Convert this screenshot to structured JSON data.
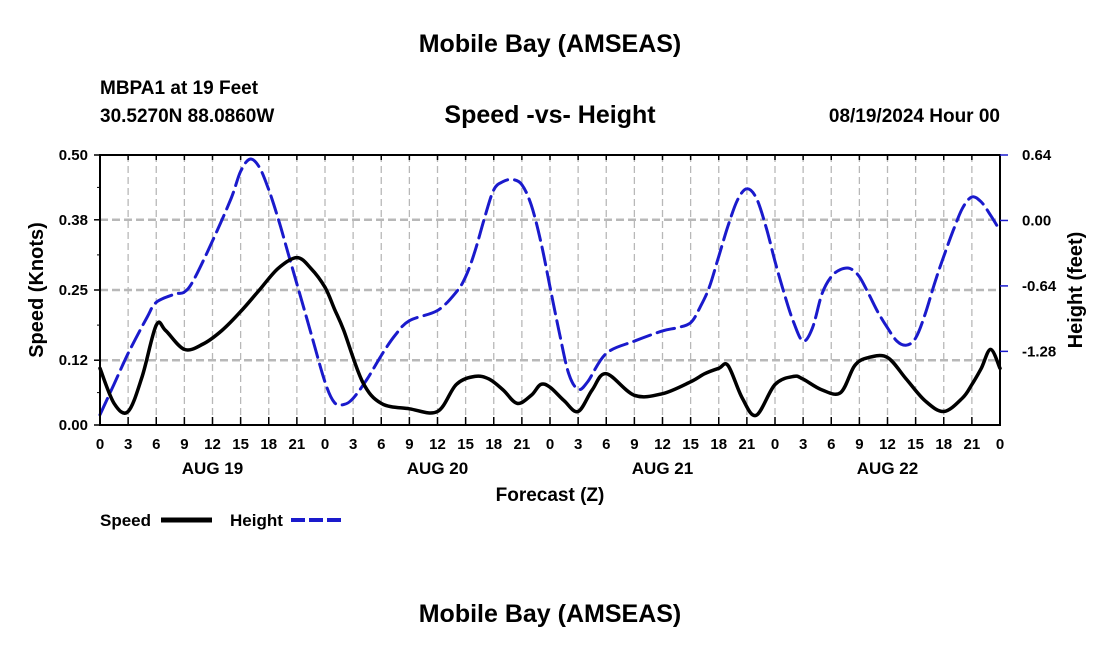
{
  "header": {
    "title": "Mobile Bay (AMSEAS)",
    "station": "MBPA1 at 19 Feet",
    "coordinates": "30.5270N  88.0860W",
    "subtitle": "Speed -vs- Height",
    "datetime": "08/19/2024 Hour 00"
  },
  "footer": {
    "title": "Mobile Bay (AMSEAS)"
  },
  "chart_data": {
    "type": "line",
    "title": "Speed -vs- Height",
    "xlabel": "Forecast (Z)",
    "ylabel": "Speed (Knots)",
    "y2label": "Height (feet)",
    "ylim": [
      0,
      0.5
    ],
    "y2lim": [
      -2.0,
      0.64
    ],
    "yticks": [
      0.0,
      0.12,
      0.25,
      0.38,
      0.5
    ],
    "yticklabels": [
      "0.00",
      "0.12",
      "0.25",
      "0.38",
      "0.50"
    ],
    "y2ticks": [
      -1.28,
      -0.64,
      0.0,
      0.64
    ],
    "y2ticklabels": [
      "-1.28",
      "-0.64",
      "0.00",
      "0.64"
    ],
    "xlim": [
      0,
      96
    ],
    "xticks": [
      0,
      3,
      6,
      9,
      12,
      15,
      18,
      21,
      24,
      27,
      30,
      33,
      36,
      39,
      42,
      45,
      48,
      51,
      54,
      57,
      60,
      63,
      66,
      69,
      72,
      75,
      78,
      81,
      84,
      87,
      90,
      93,
      96
    ],
    "xticklabels": [
      "0",
      "3",
      "6",
      "9",
      "12",
      "15",
      "18",
      "21",
      "0",
      "3",
      "6",
      "9",
      "12",
      "15",
      "18",
      "21",
      "0",
      "3",
      "6",
      "9",
      "12",
      "15",
      "18",
      "21",
      "0",
      "3",
      "6",
      "9",
      "12",
      "15",
      "18",
      "21",
      "0"
    ],
    "day_labels": [
      {
        "label": "AUG 19",
        "center": 12
      },
      {
        "label": "AUG 20",
        "center": 36
      },
      {
        "label": "AUG 21",
        "center": 60
      },
      {
        "label": "AUG 22",
        "center": 84
      }
    ],
    "grid": true,
    "legend": {
      "placement": "bottom-left",
      "entries": [
        {
          "name": "Speed",
          "color": "#000000",
          "style": "solid"
        },
        {
          "name": "Height",
          "color": "#1a1acc",
          "style": "dashed"
        }
      ]
    },
    "series": [
      {
        "name": "Speed",
        "axis": "left",
        "color": "#000000",
        "x": [
          0,
          1.5,
          3,
          4.5,
          6,
          7,
          9,
          11,
          13,
          15,
          17,
          19,
          21,
          22.5,
          24,
          25,
          26,
          28,
          30,
          33,
          36,
          38,
          40,
          41.5,
          43,
          44.5,
          46,
          47,
          48,
          49.5,
          51,
          52.5,
          54,
          57,
          60,
          63,
          64.5,
          66,
          67,
          68.5,
          70,
          72,
          74,
          75,
          77,
          79,
          80.5,
          82,
          84,
          86,
          88,
          90,
          92,
          93,
          94,
          95,
          96
        ],
        "values": [
          0.105,
          0.04,
          0.025,
          0.09,
          0.185,
          0.175,
          0.14,
          0.15,
          0.175,
          0.21,
          0.25,
          0.29,
          0.31,
          0.29,
          0.255,
          0.215,
          0.175,
          0.08,
          0.04,
          0.03,
          0.025,
          0.075,
          0.09,
          0.085,
          0.065,
          0.04,
          0.055,
          0.075,
          0.07,
          0.045,
          0.025,
          0.065,
          0.095,
          0.055,
          0.058,
          0.08,
          0.095,
          0.105,
          0.11,
          0.05,
          0.018,
          0.075,
          0.09,
          0.085,
          0.065,
          0.06,
          0.11,
          0.125,
          0.125,
          0.085,
          0.045,
          0.025,
          0.05,
          0.075,
          0.105,
          0.14,
          0.105
        ]
      },
      {
        "name": "Height",
        "axis": "right",
        "color": "#1a1acc",
        "x": [
          0,
          1.5,
          3,
          5,
          6,
          8,
          9,
          10,
          12,
          14,
          15,
          16,
          17,
          18,
          19,
          20,
          21,
          22.5,
          24,
          25,
          26,
          27,
          28.5,
          30,
          31.5,
          33,
          36,
          38,
          39,
          40,
          41,
          42,
          43,
          44,
          45,
          46,
          47,
          48,
          49,
          50,
          51,
          52,
          54,
          57,
          60,
          61.5,
          63,
          64,
          65,
          66,
          67,
          68,
          69,
          70,
          71,
          72,
          73,
          74,
          75,
          76,
          77,
          78,
          79,
          80,
          81,
          82,
          83,
          84,
          85,
          86,
          87,
          88,
          89,
          90,
          91,
          92,
          93,
          94,
          95,
          96
        ],
        "values": [
          -1.9,
          -1.6,
          -1.3,
          -0.95,
          -0.8,
          -0.72,
          -0.7,
          -0.58,
          -0.2,
          0.22,
          0.48,
          0.6,
          0.52,
          0.3,
          0.02,
          -0.3,
          -0.62,
          -1.1,
          -1.58,
          -1.78,
          -1.8,
          -1.74,
          -1.55,
          -1.32,
          -1.12,
          -0.98,
          -0.88,
          -0.7,
          -0.55,
          -0.3,
          0.02,
          0.3,
          0.38,
          0.4,
          0.35,
          0.15,
          -0.2,
          -0.65,
          -1.1,
          -1.5,
          -1.65,
          -1.58,
          -1.3,
          -1.18,
          -1.08,
          -1.05,
          -1.0,
          -0.85,
          -0.65,
          -0.35,
          -0.05,
          0.2,
          0.31,
          0.22,
          -0.05,
          -0.4,
          -0.72,
          -1.0,
          -1.18,
          -1.05,
          -0.72,
          -0.55,
          -0.48,
          -0.47,
          -0.55,
          -0.72,
          -0.9,
          -1.05,
          -1.18,
          -1.22,
          -1.15,
          -0.92,
          -0.62,
          -0.35,
          -0.1,
          0.12,
          0.23,
          0.18,
          0.05,
          -0.1
        ]
      }
    ]
  }
}
